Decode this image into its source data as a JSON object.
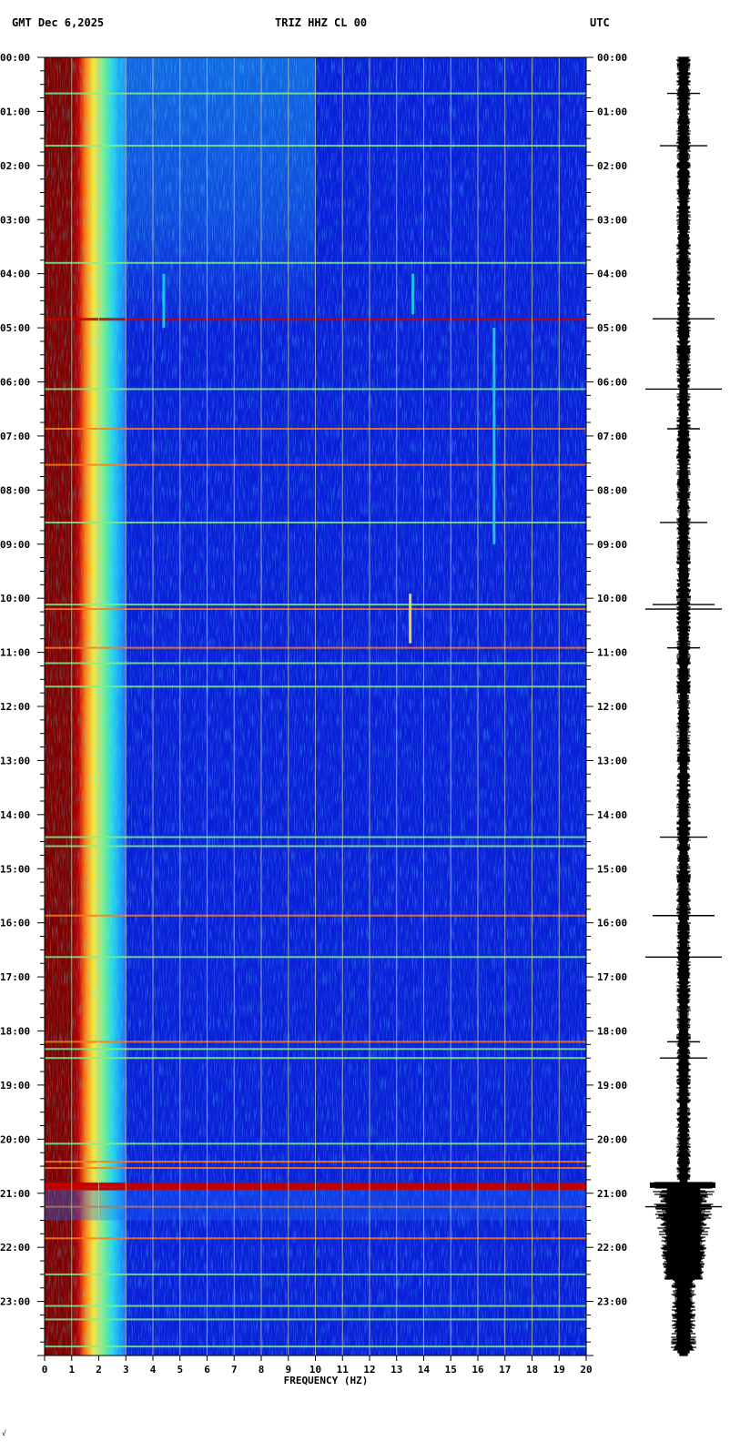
{
  "header": {
    "left": "GMT  Dec 6,2025",
    "title": "TRIZ HHZ CL 00",
    "right": "UTC"
  },
  "corner_mark": "√",
  "chart_data": {
    "type": "heatmap",
    "title": "TRIZ HHZ CL 00",
    "xlabel": "FREQUENCY (HZ)",
    "ylabel": "",
    "xlim": [
      0,
      20
    ],
    "ylim_hours": [
      0,
      24
    ],
    "x_ticks": [
      "0",
      "1",
      "2",
      "3",
      "4",
      "5",
      "6",
      "7",
      "8",
      "9",
      "10",
      "11",
      "12",
      "13",
      "14",
      "15",
      "16",
      "17",
      "18",
      "19",
      "20"
    ],
    "y_ticks": [
      "00:00",
      "01:00",
      "02:00",
      "03:00",
      "04:00",
      "05:00",
      "06:00",
      "07:00",
      "08:00",
      "09:00",
      "10:00",
      "11:00",
      "12:00",
      "13:00",
      "14:00",
      "15:00",
      "16:00",
      "17:00",
      "18:00",
      "19:00",
      "20:00",
      "21:00",
      "22:00",
      "23:00"
    ],
    "grid": true,
    "colormap": [
      "#00007a",
      "#0a1fd8",
      "#1e6dff",
      "#1fd0f0",
      "#7cf08a",
      "#f8e83a",
      "#ff7a10",
      "#c40000",
      "#800000"
    ],
    "saturated_band_hz": [
      0,
      1
    ],
    "broadband_events": [
      {
        "time": "00:40",
        "strength": 0.5
      },
      {
        "time": "01:38",
        "strength": 0.55
      },
      {
        "time": "03:48",
        "strength": 0.45
      },
      {
        "time": "04:50",
        "strength": 0.9
      },
      {
        "time": "06:08",
        "strength": 0.6
      },
      {
        "time": "06:52",
        "strength": 0.75
      },
      {
        "time": "07:32",
        "strength": 0.8
      },
      {
        "time": "08:36",
        "strength": 0.55
      },
      {
        "time": "10:07",
        "strength": 0.6
      },
      {
        "time": "10:12",
        "strength": 0.8
      },
      {
        "time": "10:55",
        "strength": 0.75
      },
      {
        "time": "11:12",
        "strength": 0.5
      },
      {
        "time": "11:38",
        "strength": 0.45
      },
      {
        "time": "14:25",
        "strength": 0.55
      },
      {
        "time": "14:35",
        "strength": 0.6
      },
      {
        "time": "15:52",
        "strength": 0.75
      },
      {
        "time": "16:38",
        "strength": 0.6
      },
      {
        "time": "18:12",
        "strength": 0.7
      },
      {
        "time": "18:20",
        "strength": 0.6
      },
      {
        "time": "18:30",
        "strength": 0.55
      },
      {
        "time": "20:05",
        "strength": 0.45
      },
      {
        "time": "20:25",
        "strength": 0.75
      },
      {
        "time": "20:32",
        "strength": 0.7
      },
      {
        "time": "20:50",
        "strength": 1.0
      },
      {
        "time": "20:55",
        "strength": 0.95
      },
      {
        "time": "21:15",
        "strength": 0.7
      },
      {
        "time": "21:50",
        "strength": 0.7
      },
      {
        "time": "22:30",
        "strength": 0.5
      },
      {
        "time": "23:05",
        "strength": 0.45
      },
      {
        "time": "23:20",
        "strength": 0.5
      },
      {
        "time": "23:50",
        "strength": 0.55
      }
    ],
    "narrowband_features": [
      {
        "freq_hz": 13.5,
        "start": "09:55",
        "end": "10:50"
      },
      {
        "freq_hz": 13.6,
        "start": "04:00",
        "end": "04:45"
      },
      {
        "freq_hz": 4.4,
        "start": "04:00",
        "end": "05:00"
      },
      {
        "freq_hz": 16.6,
        "start": "05:00",
        "end": "09:00"
      }
    ],
    "seismogram_events": [
      "00:40",
      "01:38",
      "04:50",
      "06:08",
      "06:52",
      "08:36",
      "10:07",
      "10:12",
      "10:55",
      "14:25",
      "15:52",
      "16:38",
      "18:12",
      "18:30",
      "20:50",
      "21:15",
      "21:50"
    ]
  }
}
